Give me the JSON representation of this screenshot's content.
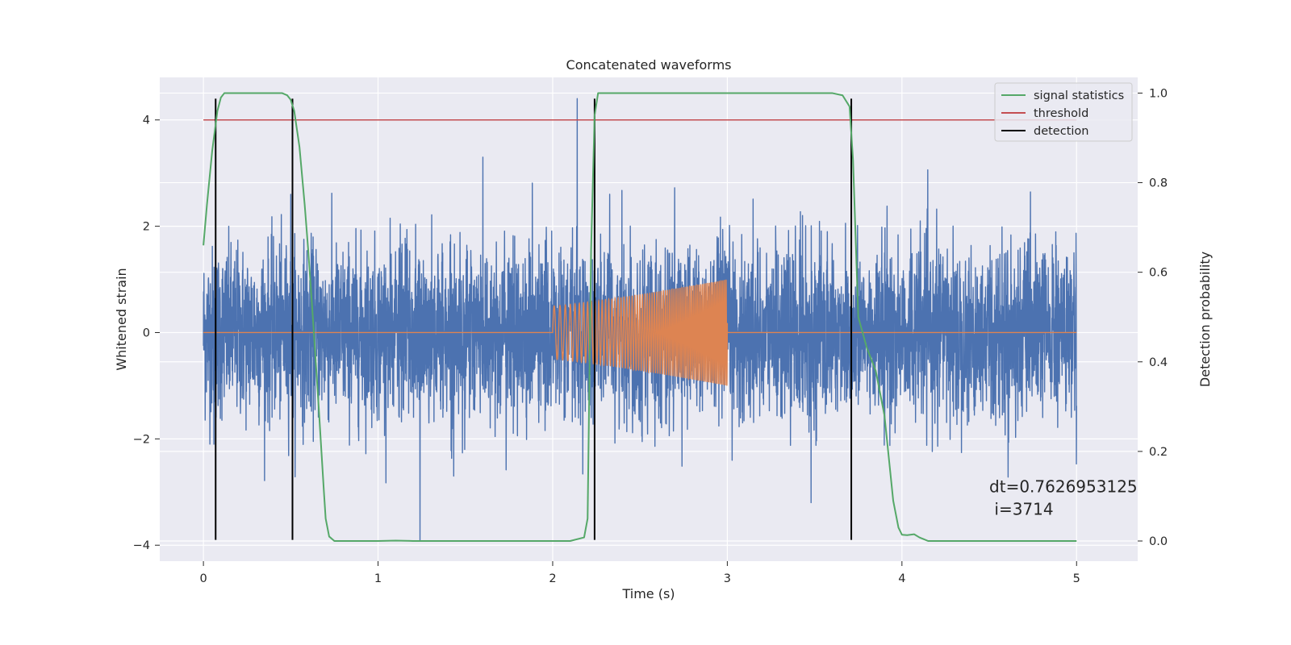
{
  "chart_data": {
    "type": "line",
    "title": "Concatenated waveforms",
    "xlabel": "Time (s)",
    "ylabel": "Whitened strain",
    "y2label": "Detection probability",
    "xlim": [
      -0.25,
      5.35
    ],
    "ylim": [
      -4.3,
      4.8
    ],
    "y2lim": [
      -0.045,
      1.035
    ],
    "xticks": [
      0,
      1,
      2,
      3,
      4,
      5
    ],
    "xtick_labels": [
      "0",
      "1",
      "2",
      "3",
      "4",
      "5"
    ],
    "yticks": [
      -4,
      -2,
      0,
      2,
      4
    ],
    "ytick_labels": [
      "−4",
      "−2",
      "0",
      "2",
      "4"
    ],
    "y2ticks": [
      0.0,
      0.2,
      0.4,
      0.6,
      0.8,
      1.0
    ],
    "y2tick_labels": [
      "0.0",
      "0.2",
      "0.4",
      "0.6",
      "0.8",
      "1.0"
    ],
    "grid": true,
    "legend_position": "top-right",
    "colors": {
      "background": "#eaeaf2",
      "grid": "#ffffff",
      "noise": "#4c72b0",
      "injection": "#dd8452",
      "signal_statistics": "#55a868",
      "threshold": "#c44e52",
      "detection": "#000000"
    },
    "series": [
      {
        "key": "noise",
        "kind": "noise",
        "x_range": [
          0,
          5
        ],
        "envelope_peak": 3.1,
        "envelope_typical": 1.05,
        "spikes": [
          [
            2.14,
            4.4
          ],
          [
            1.24,
            -3.9
          ],
          [
            1.6,
            3.3
          ],
          [
            3.48,
            -3.2
          ],
          [
            0.5,
            2.6
          ],
          [
            0.06,
            -2.1
          ]
        ]
      },
      {
        "key": "injection",
        "kind": "chirp",
        "x_range": [
          0,
          5
        ],
        "active_range": [
          2.0,
          3.0
        ],
        "amplitude_range": [
          0.5,
          1.0
        ]
      },
      {
        "name": "signal statistics",
        "axis": "right",
        "x": [
          0.0,
          0.02,
          0.05,
          0.08,
          0.1,
          0.12,
          0.15,
          0.2,
          0.3,
          0.4,
          0.45,
          0.48,
          0.5,
          0.52,
          0.55,
          0.58,
          0.6,
          0.63,
          0.66,
          0.69,
          0.7,
          0.72,
          0.75,
          0.8,
          1.0,
          1.1,
          1.2,
          1.5,
          2.0,
          2.1,
          2.18,
          2.2,
          2.22,
          2.24,
          2.26,
          2.3,
          2.5,
          3.0,
          3.5,
          3.6,
          3.66,
          3.7,
          3.72,
          3.75,
          3.8,
          3.85,
          3.9,
          3.95,
          3.98,
          4.0,
          4.03,
          4.07,
          4.1,
          4.15,
          4.3,
          5.0
        ],
        "values": [
          0.66,
          0.75,
          0.87,
          0.96,
          0.99,
          1.0,
          1.0,
          1.0,
          1.0,
          1.0,
          1.0,
          0.995,
          0.985,
          0.96,
          0.88,
          0.75,
          0.65,
          0.48,
          0.3,
          0.11,
          0.05,
          0.01,
          0.0,
          0.0,
          0.0,
          0.001,
          0.0,
          0.0,
          0.0,
          0.0,
          0.008,
          0.05,
          0.65,
          0.95,
          1.0,
          1.0,
          1.0,
          1.0,
          1.0,
          1.0,
          0.995,
          0.97,
          0.85,
          0.5,
          0.43,
          0.38,
          0.28,
          0.09,
          0.03,
          0.014,
          0.013,
          0.015,
          0.008,
          0.0,
          0.0,
          0.0
        ]
      },
      {
        "name": "threshold",
        "axis": "left",
        "x": [
          0,
          5
        ],
        "values": [
          4,
          4
        ]
      },
      {
        "name": "detection",
        "axis": "left",
        "kind": "vlines",
        "x": [
          0.07,
          0.51,
          2.24,
          3.71
        ],
        "y_range": [
          -3.9,
          4.4
        ]
      }
    ],
    "annotation": {
      "line1": "dt=0.7626953125",
      "line2": " i=3714",
      "x": 4.5,
      "y": -3.0
    }
  }
}
